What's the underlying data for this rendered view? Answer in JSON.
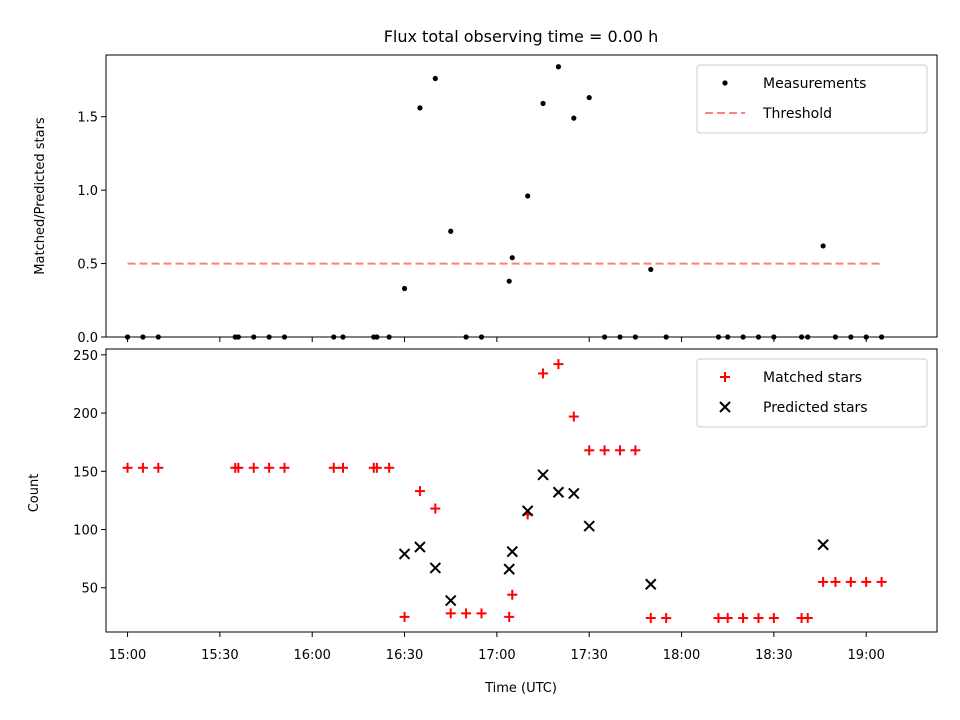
{
  "chart_data": [
    {
      "type": "scatter",
      "title": "Flux total observing time = 0.00 h",
      "xlabel": "",
      "ylabel": "Matched/Predicted stars",
      "xlim": [
        "14:53",
        "19:23"
      ],
      "ylim": [
        0,
        1.92
      ],
      "yticks": [
        0.0,
        0.5,
        1.0,
        1.5
      ],
      "ytick_labels": [
        "0.0",
        "0.5",
        "1.0",
        "1.5"
      ],
      "legend_position": "top-right",
      "series": [
        {
          "name": "Measurements",
          "marker": "dot",
          "color": "#000000",
          "points": [
            [
              "15:00",
              0
            ],
            [
              "15:05",
              0
            ],
            [
              "15:10",
              0
            ],
            [
              "15:35",
              0
            ],
            [
              "15:36",
              0
            ],
            [
              "15:41",
              0
            ],
            [
              "15:46",
              0
            ],
            [
              "15:51",
              0
            ],
            [
              "16:07",
              0
            ],
            [
              "16:10",
              0
            ],
            [
              "16:20",
              0
            ],
            [
              "16:21",
              0
            ],
            [
              "16:25",
              0
            ],
            [
              "16:30",
              0.33
            ],
            [
              "16:35",
              1.56
            ],
            [
              "16:40",
              1.76
            ],
            [
              "16:45",
              0.72
            ],
            [
              "16:50",
              0
            ],
            [
              "16:55",
              0
            ],
            [
              "17:04",
              0.38
            ],
            [
              "17:05",
              0.54
            ],
            [
              "17:10",
              0.96
            ],
            [
              "17:15",
              1.59
            ],
            [
              "17:20",
              1.84
            ],
            [
              "17:25",
              1.49
            ],
            [
              "17:30",
              1.63
            ],
            [
              "17:35",
              0
            ],
            [
              "17:40",
              0
            ],
            [
              "17:45",
              0
            ],
            [
              "17:50",
              0.46
            ],
            [
              "17:55",
              0
            ],
            [
              "18:12",
              0
            ],
            [
              "18:15",
              0
            ],
            [
              "18:20",
              0
            ],
            [
              "18:25",
              0
            ],
            [
              "18:30",
              0
            ],
            [
              "18:39",
              0
            ],
            [
              "18:41",
              0
            ],
            [
              "18:46",
              0.62
            ],
            [
              "18:50",
              0
            ],
            [
              "18:55",
              0
            ],
            [
              "19:00",
              0
            ],
            [
              "19:05",
              0
            ]
          ]
        },
        {
          "name": "Threshold",
          "marker": "dashed-line",
          "color": "#ff7f7f",
          "points": [
            [
              "15:00",
              0.5
            ],
            [
              "19:05",
              0.5
            ]
          ]
        }
      ]
    },
    {
      "type": "scatter",
      "title": "",
      "xlabel": "Time (UTC)",
      "ylabel": "Count",
      "xlim": [
        "14:53",
        "19:23"
      ],
      "ylim": [
        12,
        255
      ],
      "xticks": [
        "15:00",
        "15:30",
        "16:00",
        "16:30",
        "17:00",
        "17:30",
        "18:00",
        "18:30",
        "19:00"
      ],
      "yticks": [
        50,
        100,
        150,
        200,
        250
      ],
      "ytick_labels": [
        "50",
        "100",
        "150",
        "200",
        "250"
      ],
      "legend_position": "top-right",
      "series": [
        {
          "name": "Matched stars",
          "marker": "plus",
          "color": "#ff0000",
          "points": [
            [
              "15:00",
              153
            ],
            [
              "15:05",
              153
            ],
            [
              "15:10",
              153
            ],
            [
              "15:35",
              153
            ],
            [
              "15:36",
              153
            ],
            [
              "15:41",
              153
            ],
            [
              "15:46",
              153
            ],
            [
              "15:51",
              153
            ],
            [
              "16:07",
              153
            ],
            [
              "16:10",
              153
            ],
            [
              "16:20",
              153
            ],
            [
              "16:21",
              153
            ],
            [
              "16:25",
              153
            ],
            [
              "16:30",
              25
            ],
            [
              "16:35",
              133
            ],
            [
              "16:40",
              118
            ],
            [
              "16:45",
              28
            ],
            [
              "16:50",
              28
            ],
            [
              "16:55",
              28
            ],
            [
              "17:04",
              25
            ],
            [
              "17:05",
              44
            ],
            [
              "17:10",
              113
            ],
            [
              "17:15",
              234
            ],
            [
              "17:20",
              242
            ],
            [
              "17:25",
              197
            ],
            [
              "17:30",
              168
            ],
            [
              "17:35",
              168
            ],
            [
              "17:40",
              168
            ],
            [
              "17:45",
              168
            ],
            [
              "17:50",
              24
            ],
            [
              "17:55",
              24
            ],
            [
              "18:12",
              24
            ],
            [
              "18:15",
              24
            ],
            [
              "18:20",
              24
            ],
            [
              "18:25",
              24
            ],
            [
              "18:30",
              24
            ],
            [
              "18:39",
              24
            ],
            [
              "18:41",
              24
            ],
            [
              "18:46",
              55
            ],
            [
              "18:50",
              55
            ],
            [
              "18:55",
              55
            ],
            [
              "19:00",
              55
            ],
            [
              "19:05",
              55
            ]
          ]
        },
        {
          "name": "Predicted stars",
          "marker": "x",
          "color": "#000000",
          "points": [
            [
              "16:30",
              79
            ],
            [
              "16:35",
              85
            ],
            [
              "16:40",
              67
            ],
            [
              "16:45",
              39
            ],
            [
              "17:04",
              66
            ],
            [
              "17:05",
              81
            ],
            [
              "17:10",
              116
            ],
            [
              "17:15",
              147
            ],
            [
              "17:20",
              132
            ],
            [
              "17:25",
              131
            ],
            [
              "17:30",
              103
            ],
            [
              "17:50",
              53
            ],
            [
              "18:46",
              87
            ]
          ]
        }
      ]
    }
  ]
}
